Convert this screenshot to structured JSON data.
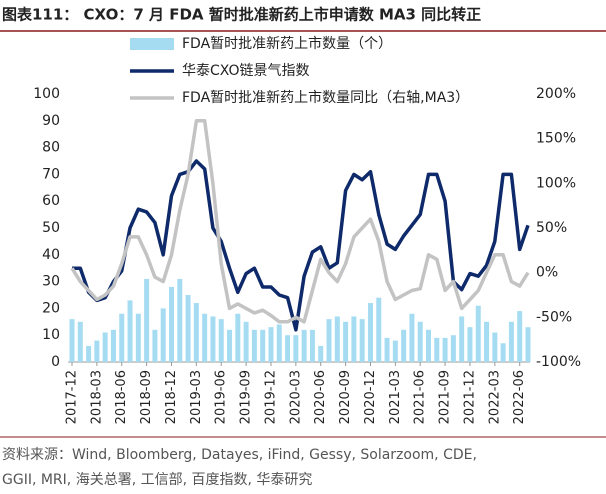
{
  "chart_data": {
    "type": "combo",
    "title": "图表111：  CXO：7 月 FDA 暂时批准新药上市申请数 MA3 同比转正",
    "categories": [
      "2017-12",
      null,
      null,
      "2018-03",
      null,
      null,
      "2018-06",
      null,
      null,
      "2018-09",
      null,
      null,
      "2018-12",
      null,
      null,
      "2019-03",
      null,
      null,
      "2019-06",
      null,
      null,
      "2019-09",
      null,
      null,
      "2019-12",
      null,
      null,
      "2020-03",
      null,
      null,
      "2020-06",
      null,
      null,
      "2020-09",
      null,
      null,
      "2020-12",
      null,
      null,
      "2021-03",
      null,
      null,
      "2021-06",
      null,
      null,
      "2021-09",
      null,
      null,
      "2021-12",
      null,
      null,
      "2022-03",
      null,
      null,
      "2022-06",
      null
    ],
    "series": [
      {
        "name": "FDA暂时批准新药上市数量（个）",
        "type": "bar",
        "axis": "y",
        "color": "#a6dcf2",
        "values": [
          16,
          15,
          6,
          8,
          11,
          12,
          18,
          23,
          18,
          31,
          12,
          20,
          28,
          31,
          25,
          22,
          18,
          17,
          16,
          12,
          18,
          15,
          12,
          12,
          13,
          14,
          10,
          10,
          12,
          12,
          6,
          16,
          17,
          15,
          17,
          16,
          22,
          24,
          9,
          8,
          12,
          18,
          15,
          12,
          9,
          9,
          10,
          17,
          13,
          21,
          15,
          11,
          7,
          15,
          19,
          13
        ]
      },
      {
        "name": "华泰CXO链景气指数",
        "type": "line",
        "axis": "y",
        "color": "#0e2a6a",
        "values": [
          35,
          35,
          26,
          23,
          24,
          30,
          34,
          50,
          57,
          56,
          52,
          40,
          62,
          70,
          71,
          75,
          72,
          50,
          45,
          35,
          26,
          33,
          35,
          28,
          28,
          25,
          24,
          12,
          32,
          41,
          43,
          35,
          37,
          64,
          70,
          68,
          71,
          55,
          44,
          42,
          47,
          51,
          55,
          70,
          70,
          60,
          30,
          27,
          33,
          32,
          36,
          45,
          70,
          70,
          42,
          51
        ]
      },
      {
        "name": "FDA暂时批准新药上市数量同比（右轴,MA3）",
        "type": "line",
        "axis": "y2",
        "color": "#c3c3c3",
        "values": [
          5,
          -10,
          -20,
          -30,
          -25,
          -15,
          10,
          40,
          40,
          20,
          -5,
          -10,
          20,
          70,
          110,
          170,
          170,
          100,
          10,
          -40,
          -35,
          -40,
          -45,
          -42,
          -48,
          -55,
          -55,
          -50,
          -55,
          -20,
          15,
          0,
          -10,
          10,
          40,
          50,
          60,
          35,
          -10,
          -30,
          -25,
          -20,
          -18,
          20,
          15,
          -20,
          -10,
          -40,
          -30,
          -20,
          0,
          20,
          20,
          -10,
          -15,
          0
        ]
      }
    ],
    "ylim": [
      0,
      100
    ],
    "yticks": [
      0,
      10,
      20,
      30,
      40,
      50,
      60,
      70,
      80,
      90,
      100
    ],
    "y2lim": [
      -100,
      200
    ],
    "y2ticks": [
      {
        "value": -100,
        "label": "-100%"
      },
      {
        "value": -50,
        "label": "-50%"
      },
      {
        "value": 0,
        "label": "0%"
      },
      {
        "value": 50,
        "label": "50%"
      },
      {
        "value": 100,
        "label": "100%"
      },
      {
        "value": 150,
        "label": "150%"
      },
      {
        "value": 200,
        "label": "200%"
      }
    ],
    "legend": "top-left",
    "grid": false,
    "source": [
      "资料来源：Wind, Bloomberg, Datayes, iFind, Gessy, Solarzoom, CDE,",
      "GGII, MRI, 海关总署, 工信部, 百度指数, 华泰研究"
    ]
  }
}
